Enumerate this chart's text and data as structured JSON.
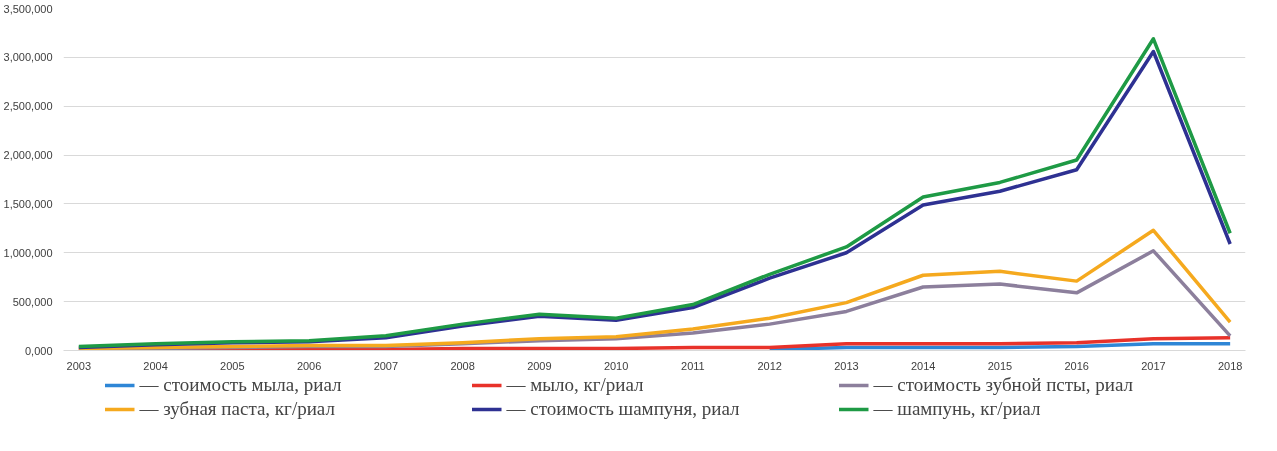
{
  "chart_data": {
    "type": "line",
    "x": [
      2003,
      2004,
      2005,
      2006,
      2007,
      2008,
      2009,
      2010,
      2011,
      2012,
      2013,
      2014,
      2015,
      2016,
      2017,
      2018
    ],
    "xlim": [
      2002.8,
      2018.2
    ],
    "xticks": [
      2003,
      2004,
      2005,
      2006,
      2007,
      2008,
      2009,
      2010,
      2011,
      2012,
      2013,
      2014,
      2015,
      2016,
      2017,
      2018
    ],
    "ylim": [
      0,
      3500000
    ],
    "yticks": [
      {
        "value": 0,
        "label": "0,000"
      },
      {
        "value": 500000,
        "label": "500,000"
      },
      {
        "value": 1000000,
        "label": "1,000,000"
      },
      {
        "value": 1500000,
        "label": "1,500,000"
      },
      {
        "value": 2000000,
        "label": "2,000,000"
      },
      {
        "value": 2500000,
        "label": "2,500,000"
      },
      {
        "value": 3000000,
        "label": "3,000,000"
      },
      {
        "value": 3500000,
        "label": "3,500,000"
      }
    ],
    "grid": "y",
    "legend": "bottom",
    "line_style": "solid",
    "marker": "none",
    "series": [
      {
        "name": "— стоимость мыла, риал",
        "color": "#2e86d6",
        "values": [
          null,
          null,
          null,
          null,
          null,
          null,
          null,
          null,
          null,
          10000,
          30000,
          30000,
          30000,
          40000,
          70000,
          70000
        ]
      },
      {
        "name": "— мыло, кг/риал",
        "color": "#e8322a",
        "values": [
          10000,
          10000,
          10000,
          10000,
          10000,
          20000,
          20000,
          20000,
          30000,
          30000,
          70000,
          70000,
          70000,
          80000,
          120000,
          130000
        ]
      },
      {
        "name": "— стоимость зубной псты, риал",
        "color": "#8c7f9c",
        "values": [
          20000,
          20000,
          30000,
          40000,
          40000,
          70000,
          100000,
          120000,
          180000,
          270000,
          400000,
          650000,
          680000,
          590000,
          1020000,
          150000
        ]
      },
      {
        "name": "— зубная паста, кг/риал",
        "color": "#f5a91e",
        "values": [
          20000,
          30000,
          40000,
          50000,
          50000,
          80000,
          120000,
          140000,
          220000,
          330000,
          490000,
          770000,
          810000,
          710000,
          1230000,
          290000
        ]
      },
      {
        "name": "— стоимость шампуня, риал",
        "color": "#2e3192",
        "values": [
          30000,
          60000,
          80000,
          90000,
          130000,
          250000,
          350000,
          310000,
          440000,
          740000,
          1000000,
          1490000,
          1630000,
          1850000,
          3060000,
          1090000
        ]
      },
      {
        "name": "— шампунь, кг/риал",
        "color": "#1e9a45",
        "values": [
          40000,
          70000,
          90000,
          100000,
          150000,
          270000,
          370000,
          330000,
          470000,
          780000,
          1060000,
          1570000,
          1720000,
          1950000,
          3190000,
          1200000
        ]
      }
    ]
  }
}
